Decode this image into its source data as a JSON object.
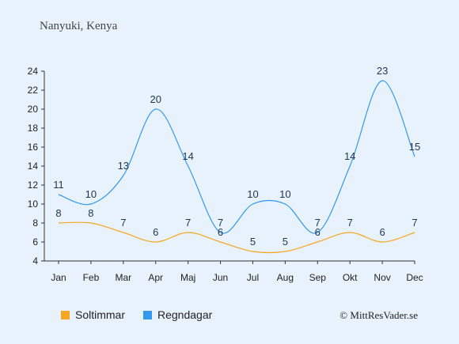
{
  "chart_data": {
    "type": "line",
    "title": "Nanyuki, Kenya",
    "categories": [
      "Jan",
      "Feb",
      "Mar",
      "Apr",
      "Maj",
      "Jun",
      "Jul",
      "Aug",
      "Sep",
      "Okt",
      "Nov",
      "Dec"
    ],
    "series": [
      {
        "name": "Soltimmar",
        "color": "#f5a623",
        "values": [
          8,
          8,
          7,
          6,
          7,
          6,
          5,
          5,
          6,
          7,
          6,
          7
        ]
      },
      {
        "name": "Regndagar",
        "color": "#3399ee",
        "values": [
          11,
          10,
          13,
          20,
          14,
          7,
          10,
          10,
          7,
          14,
          23,
          15
        ]
      }
    ],
    "ylim": [
      4,
      24
    ],
    "yticks": [
      4,
      6,
      8,
      10,
      12,
      14,
      16,
      18,
      20,
      22,
      24
    ],
    "grid": false,
    "legend_position": "bottom-left",
    "credit": "© MittResVader.se"
  }
}
